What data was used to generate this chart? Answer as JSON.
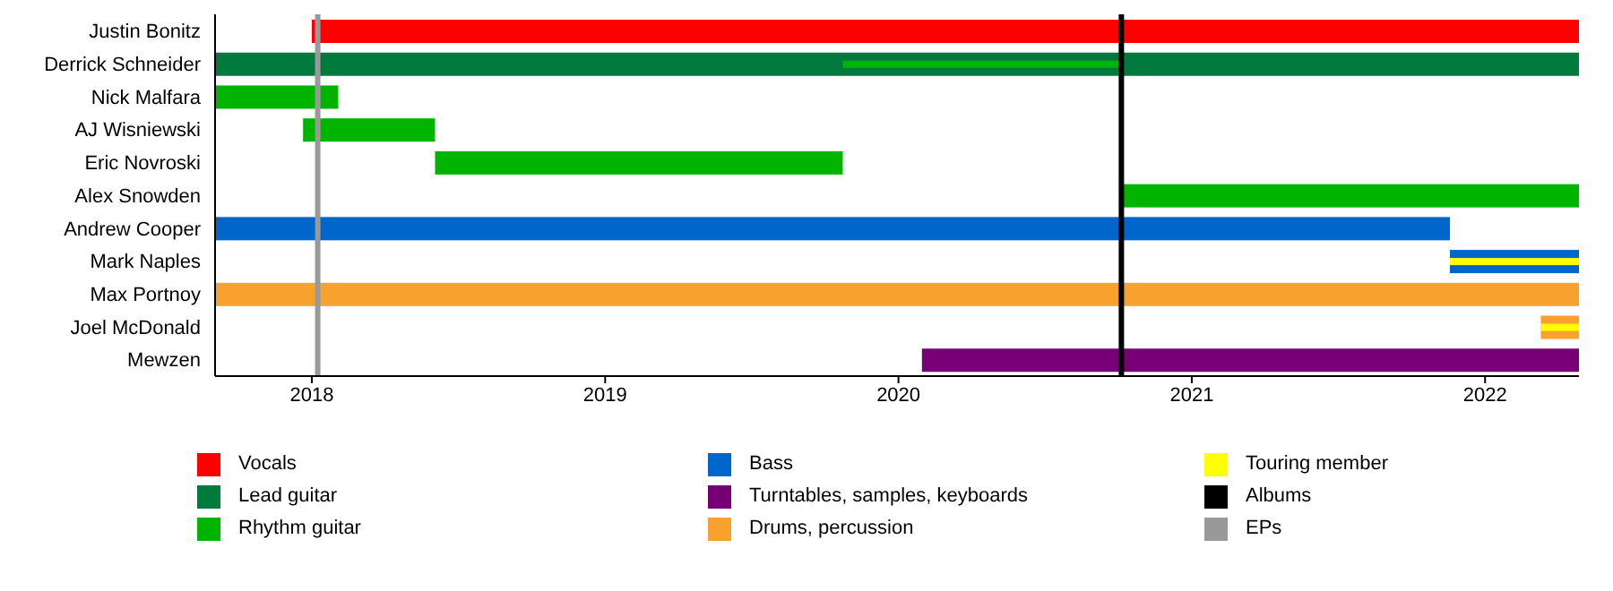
{
  "chart_data": {
    "type": "bar",
    "orientation": "horizontal",
    "categories": [
      "Justin Bonitz",
      "Derrick Schneider",
      "Nick Malfara",
      "AJ Wisniewski",
      "Eric Novroski",
      "Alex Snowden",
      "Andrew Cooper",
      "Mark Naples",
      "Max Portnoy",
      "Joel McDonald",
      "Mewzen"
    ],
    "series": [
      {
        "name": "Vocals",
        "color": "#ff0000",
        "base": [
          2018.0,
          null,
          null,
          null,
          null,
          null,
          null,
          null,
          null,
          null,
          null
        ],
        "values": [
          4.32,
          null,
          null,
          null,
          null,
          null,
          null,
          null,
          null,
          null,
          null
        ]
      },
      {
        "name": "Lead guitar",
        "color": "#007a3d",
        "base": [
          null,
          2017.67,
          null,
          null,
          null,
          null,
          null,
          null,
          null,
          null,
          null
        ],
        "values": [
          null,
          4.65,
          null,
          null,
          null,
          null,
          null,
          null,
          null,
          null,
          null
        ]
      },
      {
        "name": "Rhythm guitar",
        "color": "#00b400",
        "base": [
          null,
          2019.81,
          2017.67,
          2017.97,
          2018.42,
          2020.76,
          null,
          null,
          null,
          null,
          null
        ],
        "values": [
          null,
          0.95,
          0.42,
          0.45,
          1.39,
          1.56,
          null,
          null,
          null,
          null,
          null
        ]
      },
      {
        "name": "Bass",
        "color": "#0066cc",
        "base": [
          null,
          null,
          null,
          null,
          null,
          null,
          2017.67,
          2021.88,
          null,
          null,
          null
        ],
        "values": [
          null,
          null,
          null,
          null,
          null,
          null,
          4.21,
          0.44,
          null,
          null,
          null
        ]
      },
      {
        "name": "Turntables, samples, keyboards",
        "color": "#770077",
        "base": [
          null,
          null,
          null,
          null,
          null,
          null,
          null,
          null,
          null,
          null,
          2020.08
        ],
        "values": [
          null,
          null,
          null,
          null,
          null,
          null,
          null,
          null,
          null,
          null,
          2.24
        ]
      },
      {
        "name": "Drums, percussion",
        "color": "#f9a12e",
        "base": [
          null,
          null,
          null,
          null,
          null,
          null,
          null,
          null,
          2017.67,
          2022.19,
          null
        ],
        "values": [
          null,
          null,
          null,
          null,
          null,
          null,
          null,
          null,
          4.65,
          0.13,
          null
        ]
      },
      {
        "name": "Touring member",
        "color": "#ffff00",
        "base": [
          null,
          null,
          null,
          null,
          null,
          null,
          null,
          2021.88,
          null,
          2022.19,
          null
        ],
        "values": [
          null,
          null,
          null,
          null,
          null,
          null,
          null,
          0.44,
          null,
          0.13,
          null
        ]
      }
    ],
    "ref_lines": [
      {
        "axis": "x",
        "value": 2020.76,
        "label": "Albums",
        "color": "#000000"
      },
      {
        "axis": "x",
        "value": 2018.02,
        "label": "EPs",
        "color": "#999999"
      }
    ],
    "xlim": [
      2017.67,
      2022.32
    ],
    "xticks": [
      2018,
      2019,
      2020,
      2021,
      2022
    ],
    "grid": false,
    "legend": "bottom"
  }
}
